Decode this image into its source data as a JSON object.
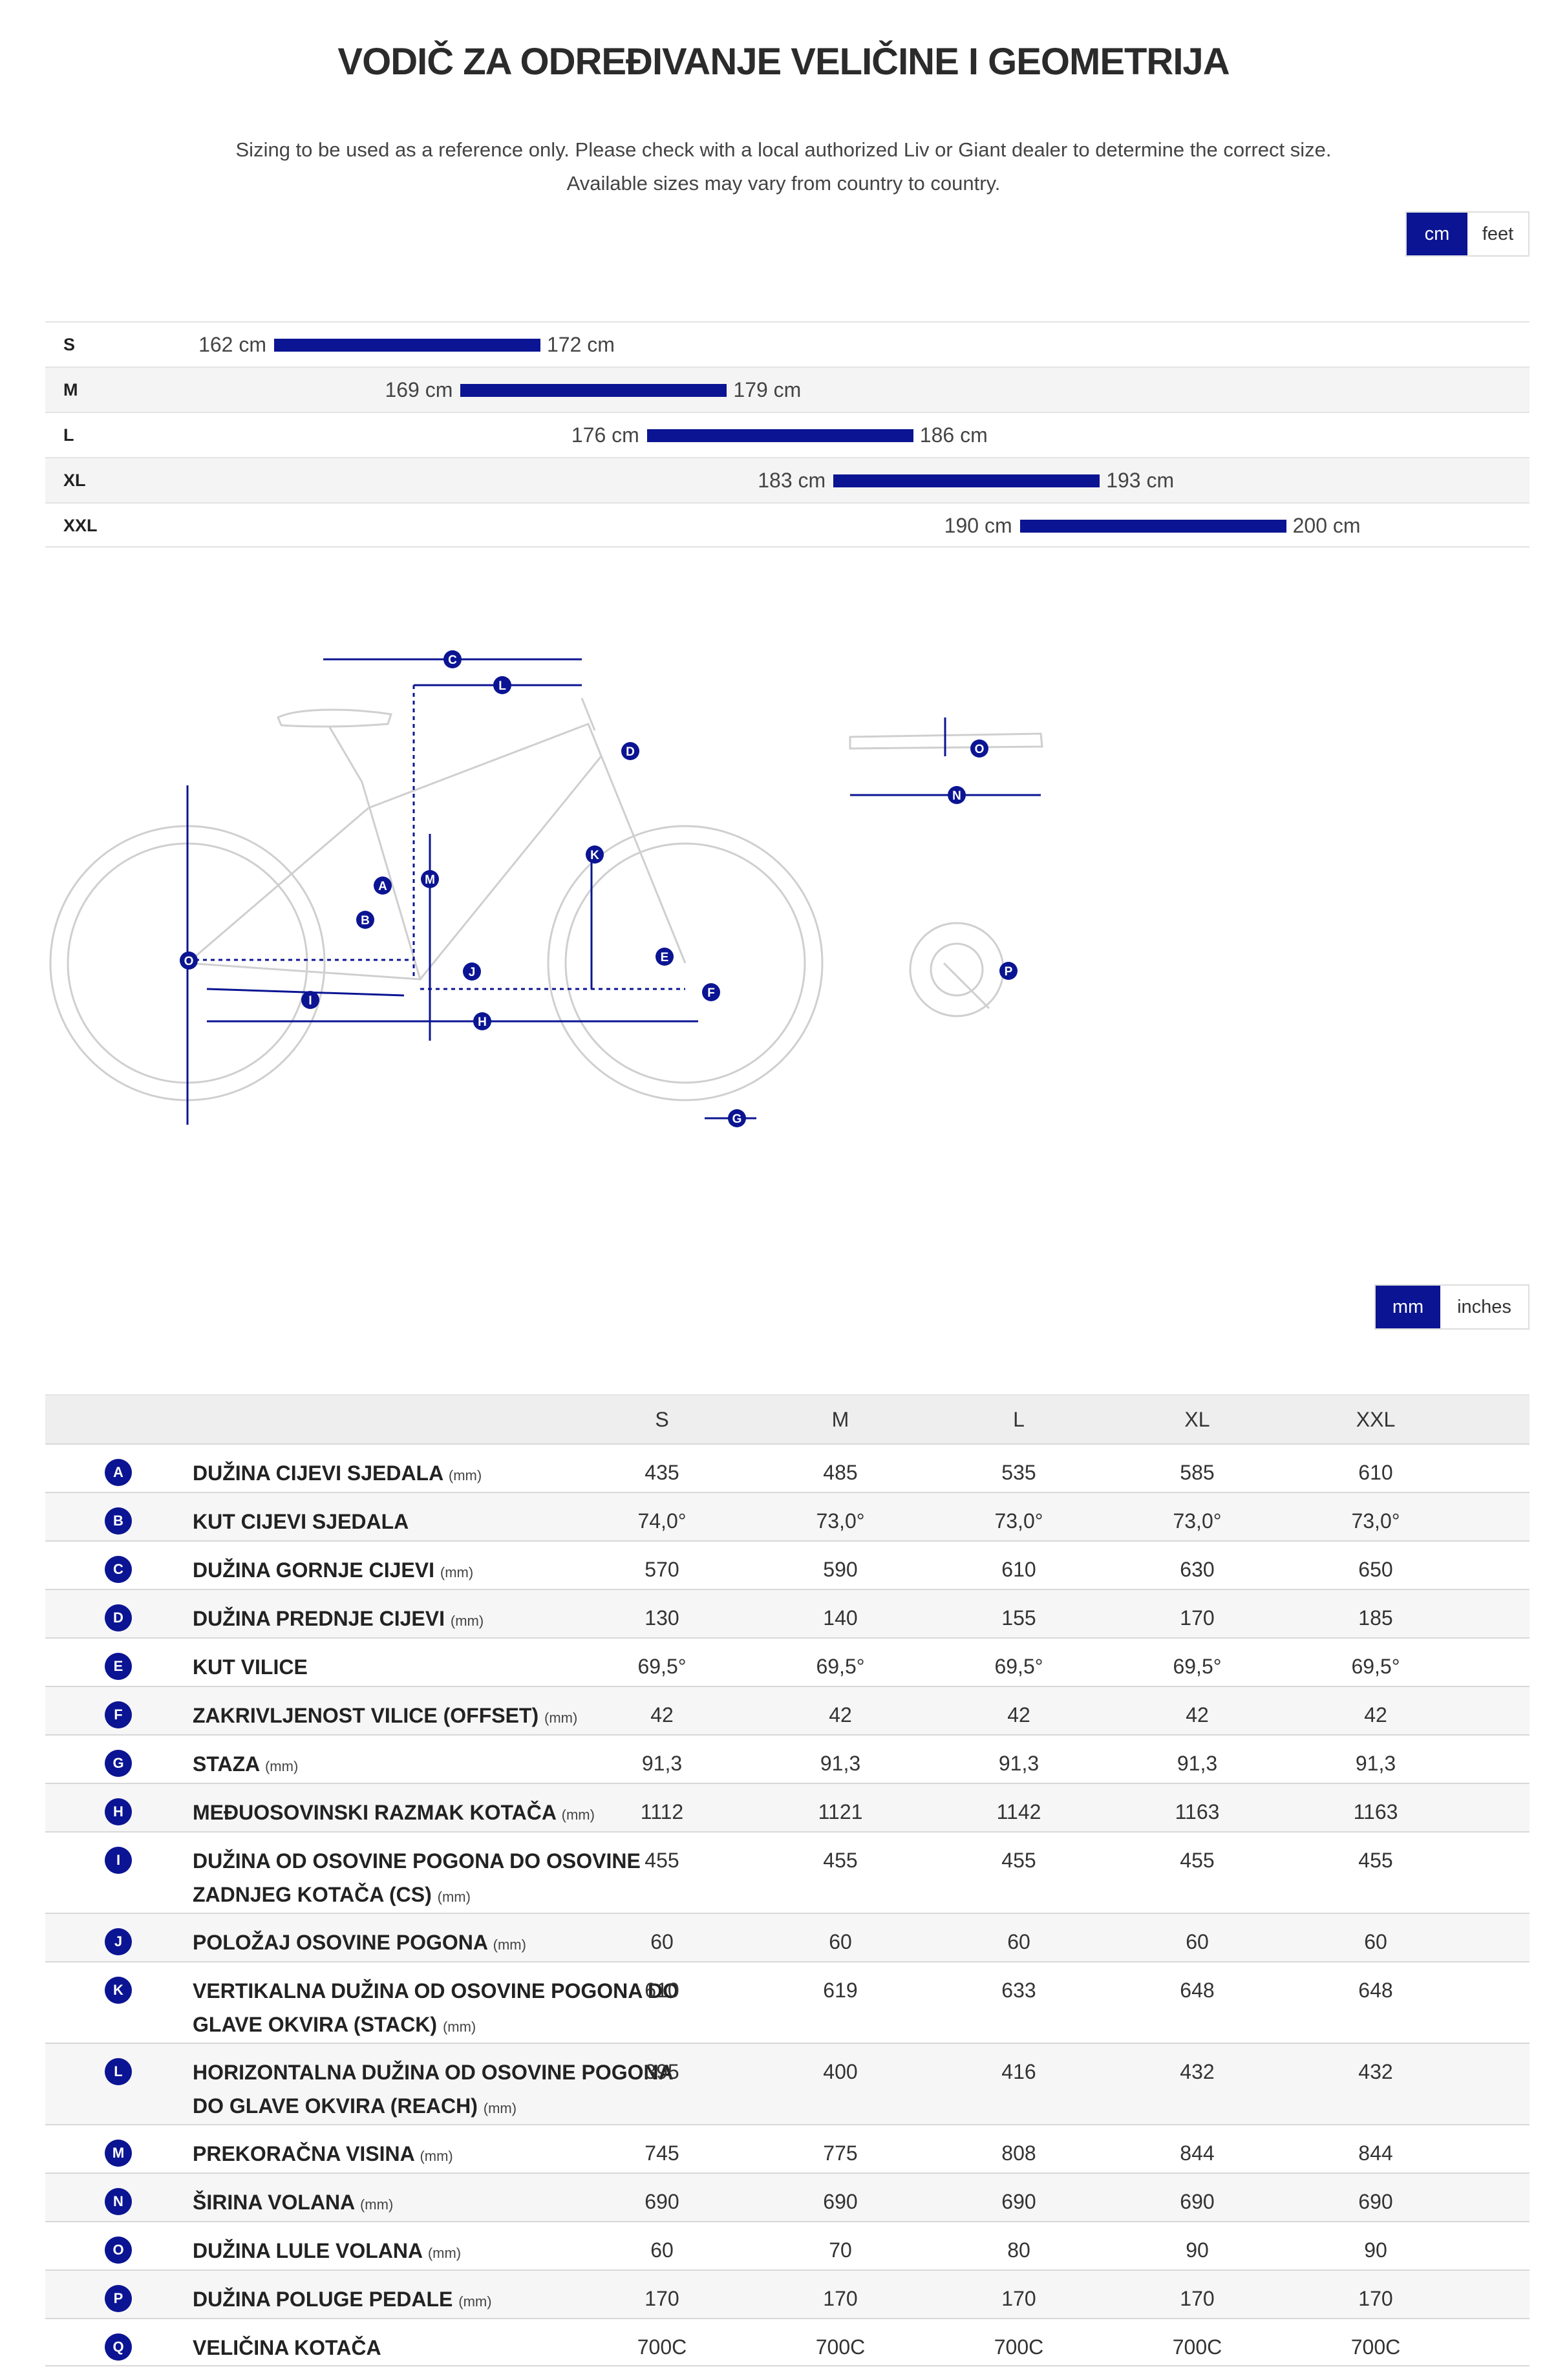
{
  "header": {
    "title": "VODIČ ZA ODREĐIVANJE VELIČINE I GEOMETRIJA",
    "subtitle_line1": "Sizing to be used as a reference only. Please check with a local authorized Liv or Giant dealer to determine the correct size.",
    "subtitle_line2": "Available sizes may vary from country to country."
  },
  "height_units": {
    "options": [
      "cm",
      "feet"
    ],
    "selected": "cm"
  },
  "size_chart": {
    "rows": [
      {
        "size": "S",
        "min": "162 cm",
        "max": "172 cm",
        "min_value": 162,
        "max_value": 172
      },
      {
        "size": "M",
        "min": "169 cm",
        "max": "179 cm",
        "min_value": 169,
        "max_value": 179
      },
      {
        "size": "L",
        "min": "176 cm",
        "max": "186 cm",
        "min_value": 176,
        "max_value": 186
      },
      {
        "size": "XL",
        "min": "183 cm",
        "max": "193 cm",
        "min_value": 183,
        "max_value": 193
      },
      {
        "size": "XXL",
        "min": "190 cm",
        "max": "200 cm",
        "min_value": 190,
        "max_value": 200
      }
    ]
  },
  "diagram": {
    "frame_labels": [
      "A",
      "B",
      "C",
      "D",
      "E",
      "F",
      "G",
      "H",
      "I",
      "J",
      "K",
      "L",
      "M",
      "O"
    ],
    "handlebar_labels": [
      "O",
      "N"
    ],
    "crank_labels": [
      "P"
    ],
    "accent": "#0b1492",
    "line_color": "#cfcfcf"
  },
  "geometry_units": {
    "options": [
      "mm",
      "inches"
    ],
    "selected": "mm"
  },
  "geometry": {
    "columns": [
      "S",
      "M",
      "L",
      "XL",
      "XXL"
    ],
    "rows": [
      {
        "key": "A",
        "label": "DUŽINA CIJEVI SJEDALA",
        "unit": "(mm)",
        "values": [
          "435",
          "485",
          "535",
          "585",
          "610"
        ]
      },
      {
        "key": "B",
        "label": "KUT CIJEVI SJEDALA",
        "unit": "",
        "values": [
          "74,0°",
          "73,0°",
          "73,0°",
          "73,0°",
          "73,0°"
        ]
      },
      {
        "key": "C",
        "label": "DUŽINA GORNJE CIJEVI",
        "unit": "(mm)",
        "values": [
          "570",
          "590",
          "610",
          "630",
          "650"
        ]
      },
      {
        "key": "D",
        "label": "DUŽINA PREDNJE CIJEVI",
        "unit": "(mm)",
        "values": [
          "130",
          "140",
          "155",
          "170",
          "185"
        ]
      },
      {
        "key": "E",
        "label": "KUT VILICE",
        "unit": "",
        "values": [
          "69,5°",
          "69,5°",
          "69,5°",
          "69,5°",
          "69,5°"
        ]
      },
      {
        "key": "F",
        "label": "ZAKRIVLJENOST VILICE (OFFSET)",
        "unit": "(mm)",
        "values": [
          "42",
          "42",
          "42",
          "42",
          "42"
        ]
      },
      {
        "key": "G",
        "label": "STAZA",
        "unit": "(mm)",
        "values": [
          "91,3",
          "91,3",
          "91,3",
          "91,3",
          "91,3"
        ]
      },
      {
        "key": "H",
        "label": "MEĐUOSOVINSKI RAZMAK KOTAČA",
        "unit": "(mm)",
        "values": [
          "1112",
          "1121",
          "1142",
          "1163",
          "1163"
        ]
      },
      {
        "key": "I",
        "label": "DUŽINA OD OSOVINE POGONA DO OSOVINE ZADNJEG KOTAČA (CS)",
        "unit": "(mm)",
        "values": [
          "455",
          "455",
          "455",
          "455",
          "455"
        ]
      },
      {
        "key": "J",
        "label": "POLOŽAJ OSOVINE POGONA",
        "unit": "(mm)",
        "values": [
          "60",
          "60",
          "60",
          "60",
          "60"
        ]
      },
      {
        "key": "K",
        "label": "VERTIKALNA DUŽINA OD OSOVINE POGONA DO GLAVE OKVIRA (STACK)",
        "unit": "(mm)",
        "values": [
          "610",
          "619",
          "633",
          "648",
          "648"
        ]
      },
      {
        "key": "L",
        "label": "HORIZONTALNA DUŽINA OD OSOVINE POGONA DO GLAVE OKVIRA (REACH)",
        "unit": "(mm)",
        "values": [
          "395",
          "400",
          "416",
          "432",
          "432"
        ]
      },
      {
        "key": "M",
        "label": "PREKORAČNA VISINA",
        "unit": "(mm)",
        "values": [
          "745",
          "775",
          "808",
          "844",
          "844"
        ]
      },
      {
        "key": "N",
        "label": "ŠIRINA VOLANA",
        "unit": "(mm)",
        "values": [
          "690",
          "690",
          "690",
          "690",
          "690"
        ]
      },
      {
        "key": "O",
        "label": "DUŽINA LULE VOLANA",
        "unit": "(mm)",
        "values": [
          "60",
          "70",
          "80",
          "90",
          "90"
        ]
      },
      {
        "key": "P",
        "label": "DUŽINA POLUGE PEDALE",
        "unit": "(mm)",
        "values": [
          "170",
          "170",
          "170",
          "170",
          "170"
        ]
      },
      {
        "key": "Q",
        "label": "VELIČINA KOTAČA",
        "unit": "",
        "values": [
          "700C",
          "700C",
          "700C",
          "700C",
          "700C"
        ]
      }
    ]
  }
}
